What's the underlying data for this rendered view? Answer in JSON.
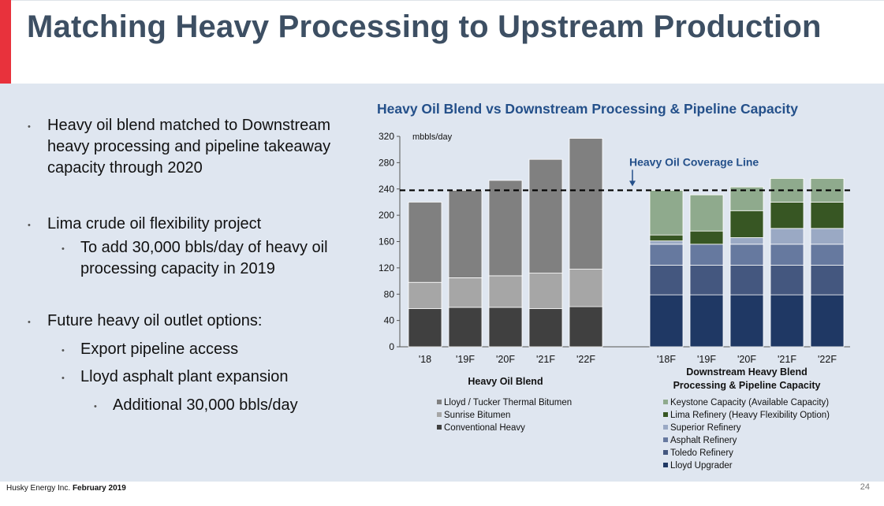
{
  "slide": {
    "title": "Matching Heavy Processing to Upstream Production",
    "bullets": [
      {
        "level": 1,
        "lines": [
          "Heavy oil blend matched to Downstream",
          "heavy processing and pipeline takeaway",
          "capacity through 2020"
        ]
      },
      {
        "level": 1,
        "lines": [
          "Lima crude oil flexibility project"
        ]
      },
      {
        "level": 2,
        "lines": [
          "To add 30,000 bbls/day of heavy oil",
          "processing capacity in 2019"
        ]
      },
      {
        "level": 1,
        "lines": [
          "Future heavy oil outlet options:"
        ]
      },
      {
        "level": 2,
        "lines": [
          "Export pipeline access"
        ]
      },
      {
        "level": 2,
        "lines": [
          "Lloyd asphalt plant expansion"
        ]
      },
      {
        "level": 3,
        "lines": [
          "Additional 30,000 bbls/day"
        ]
      }
    ],
    "footer_company": "Husky Energy Inc.",
    "footer_date": "February 2019",
    "page_number": "24"
  },
  "chart_data": {
    "type": "bar",
    "stacked": true,
    "title": "Heavy Oil Blend vs Downstream Processing & Pipeline Capacity",
    "ylabel": "mbbls/day",
    "ylim": [
      0,
      320
    ],
    "yticks": [
      0,
      40,
      80,
      120,
      160,
      200,
      240,
      280,
      320
    ],
    "reference_line": {
      "label": "Heavy Oil Coverage Line",
      "value": 238
    },
    "groups": [
      {
        "name": "Heavy Oil Blend",
        "categories": [
          "'18",
          "'19F",
          "'20F",
          "'21F",
          "'22F"
        ],
        "series": [
          {
            "name": "Conventional Heavy",
            "color": "#404040",
            "values": [
              58,
              60,
              60,
              58,
              61
            ]
          },
          {
            "name": "Sunrise Bitumen",
            "color": "#a6a6a6",
            "values": [
              40,
              45,
              48,
              54,
              57
            ]
          },
          {
            "name": "Lloyd / Tucker  Thermal Bitumen",
            "color": "#808080",
            "values": [
              122,
              133,
              145,
              173,
              199
            ]
          }
        ]
      },
      {
        "name_lines": [
          "Downstream Heavy Blend",
          "Processing & Pipeline Capacity"
        ],
        "categories": [
          "'18F",
          "'19F",
          "'20F",
          "'21F",
          "'22F"
        ],
        "series": [
          {
            "name": "Lloyd Upgrader",
            "color": "#1f3864",
            "values": [
              79,
              79,
              79,
              79,
              79
            ]
          },
          {
            "name": "Toledo Refinery",
            "color": "#44577f",
            "values": [
              45,
              45,
              45,
              45,
              45
            ]
          },
          {
            "name": "Asphalt Refinery",
            "color": "#66799f",
            "values": [
              32,
              32,
              32,
              32,
              32
            ]
          },
          {
            "name": "Superior Refinery",
            "color": "#9aa9c4",
            "values": [
              5,
              0,
              10,
              24,
              24
            ]
          },
          {
            "name": "Lima Refinery (Heavy Flexibility Option)",
            "color": "#375623",
            "values": [
              9,
              20,
              41,
              40,
              40
            ]
          },
          {
            "name": "Keystone Capacity (Available Capacity)",
            "color": "#8faa8d",
            "values": [
              68,
              55,
              36,
              36,
              36
            ]
          }
        ]
      }
    ]
  }
}
